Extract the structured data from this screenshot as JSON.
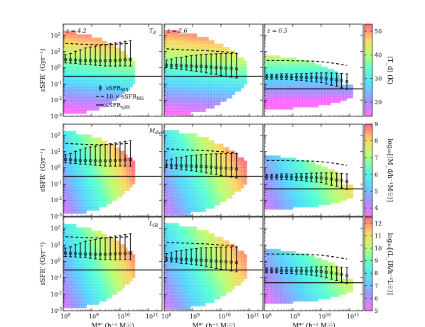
{
  "chart_data": {
    "type": "scatter",
    "description_axes": {
      "xlabel": "M*' (h⁻¹ M☉)",
      "ylabel": "sSFR' (Gyr⁻¹)",
      "x_scale": "log",
      "y_scale": "log",
      "xlim": [
        100000000.0,
        300000000000.0
      ],
      "ylim": [
        0.001,
        500
      ],
      "x_ticks": [
        "10^8",
        "10^9",
        "10^10",
        "10^11"
      ],
      "y_ticks": [
        "10^-3",
        "10^-2",
        "10^-1",
        "10^0",
        "10^1",
        "10^2"
      ]
    },
    "rows": [
      {
        "label": "T_d",
        "colorbar": {
          "label": "⟨T_d⟩ (K)",
          "min": 14,
          "max": 53,
          "ticks": [
            20,
            30,
            40,
            50
          ]
        }
      },
      {
        "label": "M_dust",
        "colorbar": {
          "label": "log₁₀[⟨M_d/h⁻¹M☉⟩]",
          "min": 3.5,
          "max": 9,
          "ticks": [
            4,
            5,
            6,
            7,
            8,
            9
          ]
        }
      },
      {
        "label": "L_IR",
        "colorbar": {
          "label": "log₁₀[⟨L_IR/h⁻²L☉⟩]",
          "min": 5,
          "max": 12.5,
          "ticks": [
            5,
            6,
            7,
            8,
            9,
            10,
            11,
            12
          ]
        }
      }
    ],
    "columns": [
      {
        "redshift": "z = 4.2",
        "ssfr_split": 0.3,
        "ms_x": [
          120000000.0,
          180000000.0,
          270000000.0,
          400000000.0,
          600000000.0,
          900000000.0,
          1350000000.0,
          2000000000.0,
          3000000000.0,
          4500000000.0,
          6800000000.0,
          10000000000.0,
          15000000000.0,
          23000000000.0
        ],
        "ms_y": [
          3.2,
          3.1,
          3.0,
          2.9,
          2.8,
          2.8,
          2.7,
          2.7,
          2.7,
          2.8,
          2.9,
          3.0,
          3.1,
          3.2
        ],
        "ms_err_lo": [
          1.6,
          1.6,
          1.6,
          1.7,
          1.7,
          1.8,
          1.9,
          2.0,
          2.1,
          2.2,
          2.3,
          2.3,
          2.4,
          2.5
        ],
        "ms_err_hi": [
          2.0,
          2.5,
          3.5,
          4.5,
          6,
          7,
          8,
          9,
          10,
          11,
          12,
          13,
          14,
          15
        ],
        "ten_ms_y": [
          32,
          31,
          30,
          29,
          28,
          28,
          27,
          27,
          27,
          28,
          29,
          30,
          31,
          32
        ],
        "region": {
          "xmin": 100000000.0,
          "xmax": 33000000000.0,
          "ymin": 0.0015,
          "ymax": 300
        }
      },
      {
        "redshift": "z = 2.6",
        "ssfr_split": 0.3,
        "ms_x": [
          120000000.0,
          180000000.0,
          270000000.0,
          400000000.0,
          600000000.0,
          900000000.0,
          1350000000.0,
          2000000000.0,
          3000000000.0,
          4500000000.0,
          6800000000.0,
          10000000000.0,
          15000000000.0,
          23000000000.0,
          35000000000.0
        ],
        "ms_y": [
          1.5,
          1.4,
          1.4,
          1.3,
          1.3,
          1.25,
          1.2,
          1.2,
          1.15,
          1.1,
          1.05,
          1.0,
          0.95,
          0.9,
          0.85
        ],
        "ms_err_lo": [
          1.4,
          1.5,
          1.6,
          1.7,
          1.8,
          1.9,
          2.0,
          2.2,
          2.4,
          2.6,
          2.8,
          3.0,
          3.2,
          3.4,
          3.6
        ],
        "ms_err_hi": [
          2.0,
          2.5,
          3.0,
          3.5,
          4,
          4.5,
          5,
          5.5,
          6,
          6.5,
          7,
          7.5,
          8,
          8.5,
          9
        ],
        "ten_ms_y": [
          15,
          14,
          14,
          13,
          13,
          12.5,
          12,
          12,
          11.5,
          11,
          10.5,
          10,
          9.5,
          9,
          8.5
        ],
        "region": {
          "xmin": 100000000.0,
          "xmax": 80000000000.0,
          "ymin": 0.0012,
          "ymax": 350
        }
      },
      {
        "redshift": "z = 0.5",
        "ssfr_split": 0.05,
        "ms_x": [
          120000000.0,
          180000000.0,
          270000000.0,
          400000000.0,
          600000000.0,
          900000000.0,
          1350000000.0,
          2000000000.0,
          3000000000.0,
          4500000000.0,
          6800000000.0,
          10000000000.0,
          15000000000.0,
          23000000000.0,
          35000000000.0,
          52000000000.0,
          80000000000.0
        ],
        "ms_y": [
          0.28,
          0.28,
          0.28,
          0.28,
          0.28,
          0.27,
          0.27,
          0.27,
          0.26,
          0.26,
          0.25,
          0.24,
          0.22,
          0.2,
          0.18,
          0.16,
          0.14
        ],
        "ms_err_lo": [
          1.4,
          1.4,
          1.4,
          1.5,
          1.5,
          1.5,
          1.6,
          1.6,
          1.7,
          1.8,
          1.9,
          2.0,
          2.2,
          2.4,
          2.6,
          2.8,
          3.0
        ],
        "ms_err_hi": [
          1.4,
          1.4,
          1.4,
          1.5,
          1.5,
          1.5,
          1.6,
          1.6,
          1.7,
          1.8,
          1.9,
          2.0,
          2.2,
          2.4,
          2.6,
          2.8,
          3.0
        ],
        "ten_ms_y": [
          2.8,
          2.8,
          2.8,
          2.8,
          2.8,
          2.7,
          2.7,
          2.7,
          2.6,
          2.6,
          2.5,
          2.4,
          2.2,
          2.0,
          1.8,
          1.6,
          1.4
        ],
        "region": {
          "xmin": 100000000.0,
          "xmax": 130000000000.0,
          "ymin": 0.002,
          "ymax": 8
        }
      }
    ],
    "legend": {
      "position": "lower-left of top-left panel",
      "entries": [
        "sSFR_MS",
        "10 × sSFR_MS",
        "sSFR_split"
      ]
    }
  },
  "labels": {
    "xlabel_text": "M*' (h⁻¹ M☉)",
    "ylabel_text": "sSFR' (Gyr⁻¹)",
    "legend_ms": "sSFR",
    "legend_ms_sub": "MS",
    "legend_10ms": "10 × sSFR",
    "legend_10ms_sub": "MS",
    "legend_split": "sSFR",
    "legend_split_sub": "split",
    "z0": "z = 4.2",
    "z1": "z = 2.6",
    "z2": "z = 0.5",
    "row0": "T",
    "row0_sub": "d",
    "row1": "M",
    "row1_sub": "dust",
    "row2": "L",
    "row2_sub": "IR",
    "cb0": "⟨T_d⟩ (K)",
    "cb1": "log₁₀[⟨M_d/h⁻¹M☉⟩]",
    "cb2": "log₁₀[⟨L_IR/h⁻²L☉⟩]"
  }
}
